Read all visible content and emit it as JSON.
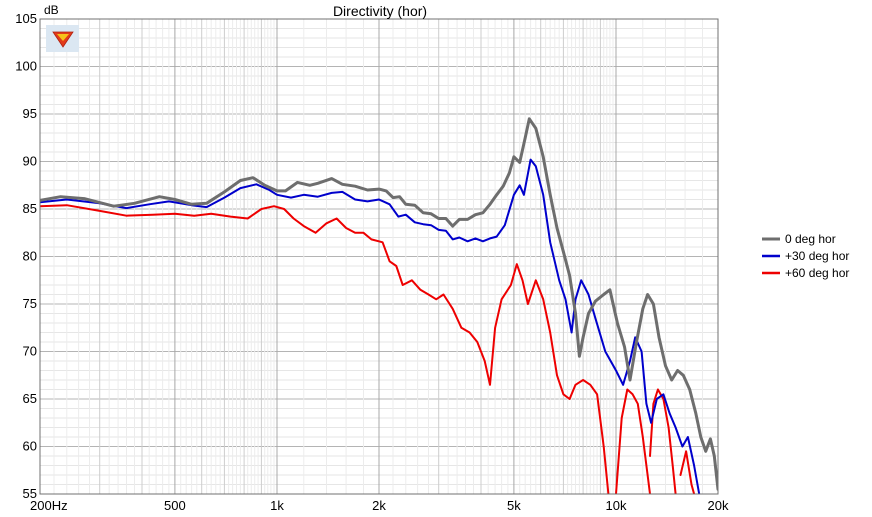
{
  "chart_data": {
    "type": "line",
    "title": "Directivity (hor)",
    "ylabel": "dB",
    "xlabel": "",
    "x_scale": "log",
    "xlim": [
      200,
      20000
    ],
    "ylim": [
      55,
      105
    ],
    "grid": true,
    "legend_position": "right",
    "yticks": [
      "55",
      "60",
      "65",
      "70",
      "75",
      "80",
      "85",
      "90",
      "95",
      "100",
      "105"
    ],
    "xticks": [
      {
        "value": 200,
        "label": "200Hz"
      },
      {
        "value": 500,
        "label": "500"
      },
      {
        "value": 1000,
        "label": "1k"
      },
      {
        "value": 2000,
        "label": "2k"
      },
      {
        "value": 5000,
        "label": "5k"
      },
      {
        "value": 10000,
        "label": "10k"
      },
      {
        "value": 20000,
        "label": "20k"
      }
    ],
    "series": [
      {
        "name": "0 deg hor",
        "color": "#6e6e6e",
        "points": [
          [
            200,
            85.9
          ],
          [
            230,
            86.3
          ],
          [
            270,
            86.1
          ],
          [
            330,
            85.3
          ],
          [
            380,
            85.6
          ],
          [
            450,
            86.3
          ],
          [
            500,
            86.0
          ],
          [
            560,
            85.5
          ],
          [
            620,
            85.6
          ],
          [
            700,
            86.8
          ],
          [
            780,
            88.0
          ],
          [
            850,
            88.3
          ],
          [
            920,
            87.5
          ],
          [
            1000,
            86.9
          ],
          [
            1060,
            86.9
          ],
          [
            1150,
            87.8
          ],
          [
            1250,
            87.5
          ],
          [
            1320,
            87.7
          ],
          [
            1450,
            88.2
          ],
          [
            1560,
            87.6
          ],
          [
            1700,
            87.4
          ],
          [
            1850,
            87.0
          ],
          [
            2000,
            87.1
          ],
          [
            2100,
            86.9
          ],
          [
            2200,
            86.2
          ],
          [
            2300,
            86.3
          ],
          [
            2400,
            85.5
          ],
          [
            2550,
            85.4
          ],
          [
            2700,
            84.6
          ],
          [
            2850,
            84.5
          ],
          [
            3000,
            84.0
          ],
          [
            3150,
            84.0
          ],
          [
            3300,
            83.2
          ],
          [
            3450,
            83.9
          ],
          [
            3650,
            83.9
          ],
          [
            3850,
            84.4
          ],
          [
            4050,
            84.6
          ],
          [
            4250,
            85.5
          ],
          [
            4450,
            86.5
          ],
          [
            4650,
            87.4
          ],
          [
            4850,
            88.8
          ],
          [
            5000,
            90.5
          ],
          [
            5200,
            89.9
          ],
          [
            5400,
            92.5
          ],
          [
            5550,
            94.5
          ],
          [
            5800,
            93.5
          ],
          [
            6100,
            90.5
          ],
          [
            6400,
            86.5
          ],
          [
            6700,
            83.0
          ],
          [
            7000,
            80.5
          ],
          [
            7300,
            78.0
          ],
          [
            7600,
            74.0
          ],
          [
            7800,
            69.5
          ],
          [
            8000,
            71.5
          ],
          [
            8300,
            74.0
          ],
          [
            8700,
            75.3
          ],
          [
            9200,
            76.0
          ],
          [
            9600,
            76.5
          ],
          [
            10100,
            73.0
          ],
          [
            10600,
            70.5
          ],
          [
            11000,
            67.0
          ],
          [
            11500,
            71.0
          ],
          [
            12000,
            74.5
          ],
          [
            12400,
            76.0
          ],
          [
            12900,
            75.0
          ],
          [
            13400,
            71.5
          ],
          [
            14000,
            68.5
          ],
          [
            14600,
            67.0
          ],
          [
            15200,
            68.0
          ],
          [
            15800,
            67.5
          ],
          [
            16500,
            66.0
          ],
          [
            17200,
            63.5
          ],
          [
            17800,
            61.0
          ],
          [
            18400,
            59.5
          ],
          [
            19000,
            60.8
          ],
          [
            19500,
            59.0
          ],
          [
            20000,
            55.5
          ]
        ]
      },
      {
        "name": "+30 deg hor",
        "color": "#0000cc",
        "points": [
          [
            200,
            85.7
          ],
          [
            240,
            86.0
          ],
          [
            300,
            85.6
          ],
          [
            360,
            85.1
          ],
          [
            420,
            85.5
          ],
          [
            480,
            85.8
          ],
          [
            560,
            85.4
          ],
          [
            620,
            85.2
          ],
          [
            700,
            86.2
          ],
          [
            780,
            87.2
          ],
          [
            870,
            87.6
          ],
          [
            950,
            87.0
          ],
          [
            1000,
            86.5
          ],
          [
            1100,
            86.2
          ],
          [
            1200,
            86.5
          ],
          [
            1320,
            86.3
          ],
          [
            1450,
            86.7
          ],
          [
            1560,
            86.8
          ],
          [
            1700,
            86.0
          ],
          [
            1850,
            85.8
          ],
          [
            2000,
            86.0
          ],
          [
            2150,
            85.5
          ],
          [
            2280,
            84.2
          ],
          [
            2400,
            84.4
          ],
          [
            2550,
            83.6
          ],
          [
            2700,
            83.4
          ],
          [
            2850,
            83.3
          ],
          [
            3000,
            82.8
          ],
          [
            3150,
            82.7
          ],
          [
            3300,
            81.8
          ],
          [
            3450,
            82.0
          ],
          [
            3650,
            81.6
          ],
          [
            3850,
            81.9
          ],
          [
            4050,
            81.6
          ],
          [
            4250,
            81.9
          ],
          [
            4450,
            82.1
          ],
          [
            4700,
            83.3
          ],
          [
            5000,
            86.5
          ],
          [
            5200,
            87.5
          ],
          [
            5350,
            86.5
          ],
          [
            5600,
            90.2
          ],
          [
            5800,
            89.5
          ],
          [
            6100,
            86.5
          ],
          [
            6400,
            81.5
          ],
          [
            6800,
            77.5
          ],
          [
            7100,
            75.5
          ],
          [
            7400,
            72.0
          ],
          [
            7600,
            75.5
          ],
          [
            7900,
            77.5
          ],
          [
            8300,
            76.0
          ],
          [
            8700,
            73.5
          ],
          [
            9300,
            70.0
          ],
          [
            10000,
            68.0
          ],
          [
            10500,
            66.5
          ],
          [
            11000,
            69.0
          ],
          [
            11400,
            71.5
          ],
          [
            11900,
            70.0
          ],
          [
            12300,
            64.5
          ],
          [
            12700,
            62.5
          ],
          [
            13200,
            65.0
          ],
          [
            13800,
            65.5
          ],
          [
            14400,
            63.5
          ],
          [
            15000,
            62.0
          ],
          [
            15700,
            60.0
          ],
          [
            16300,
            61.0
          ],
          [
            17000,
            58.0
          ],
          [
            17600,
            55.0
          ]
        ]
      },
      {
        "name": "+60 deg hor",
        "color": "#ee0000",
        "points": [
          [
            200,
            85.3
          ],
          [
            240,
            85.4
          ],
          [
            300,
            84.8
          ],
          [
            360,
            84.3
          ],
          [
            430,
            84.4
          ],
          [
            500,
            84.5
          ],
          [
            570,
            84.3
          ],
          [
            640,
            84.5
          ],
          [
            730,
            84.2
          ],
          [
            820,
            84.0
          ],
          [
            900,
            85.0
          ],
          [
            980,
            85.3
          ],
          [
            1050,
            85.0
          ],
          [
            1120,
            84.0
          ],
          [
            1200,
            83.2
          ],
          [
            1300,
            82.5
          ],
          [
            1400,
            83.5
          ],
          [
            1500,
            84.0
          ],
          [
            1600,
            83.0
          ],
          [
            1700,
            82.5
          ],
          [
            1800,
            82.5
          ],
          [
            1900,
            81.8
          ],
          [
            2050,
            81.5
          ],
          [
            2150,
            79.5
          ],
          [
            2250,
            79.0
          ],
          [
            2350,
            77.0
          ],
          [
            2500,
            77.5
          ],
          [
            2650,
            76.5
          ],
          [
            2800,
            76.0
          ],
          [
            2950,
            75.5
          ],
          [
            3100,
            76.0
          ],
          [
            3300,
            74.5
          ],
          [
            3500,
            72.5
          ],
          [
            3700,
            72.0
          ],
          [
            3900,
            71.0
          ],
          [
            4100,
            69.0
          ],
          [
            4250,
            66.5
          ],
          [
            4400,
            72.5
          ],
          [
            4600,
            75.5
          ],
          [
            4900,
            77.0
          ],
          [
            5100,
            79.2
          ],
          [
            5300,
            77.5
          ],
          [
            5500,
            75.0
          ],
          [
            5800,
            77.5
          ],
          [
            6100,
            75.5
          ],
          [
            6400,
            72.0
          ],
          [
            6700,
            67.5
          ],
          [
            7000,
            65.5
          ],
          [
            7300,
            65.0
          ],
          [
            7600,
            66.5
          ],
          [
            8000,
            67.0
          ],
          [
            8400,
            66.5
          ],
          [
            8800,
            65.5
          ],
          [
            9200,
            60.0
          ],
          [
            9500,
            55.0
          ]
        ]
      },
      {
        "name": "",
        "legend": false,
        "color": "#ee0000",
        "points": [
          [
            10000,
            55.0
          ],
          [
            10400,
            63.0
          ],
          [
            10800,
            66.0
          ],
          [
            11200,
            65.5
          ],
          [
            11600,
            64.5
          ],
          [
            12000,
            61.0
          ],
          [
            12300,
            58.0
          ],
          [
            12600,
            55.0
          ]
        ]
      },
      {
        "name": "",
        "legend": false,
        "color": "#ee0000",
        "points": [
          [
            12600,
            59.0
          ],
          [
            12900,
            64.5
          ],
          [
            13300,
            66.0
          ],
          [
            13800,
            65.0
          ],
          [
            14300,
            62.0
          ],
          [
            14700,
            58.0
          ],
          [
            15000,
            55.0
          ]
        ]
      },
      {
        "name": "",
        "legend": false,
        "color": "#ee0000",
        "points": [
          [
            15500,
            57.0
          ],
          [
            16100,
            59.5
          ],
          [
            16700,
            56.0
          ],
          [
            17000,
            55.0
          ]
        ]
      }
    ]
  },
  "logo": {
    "name": "brand-logo-icon",
    "color": "#e23a1a"
  }
}
